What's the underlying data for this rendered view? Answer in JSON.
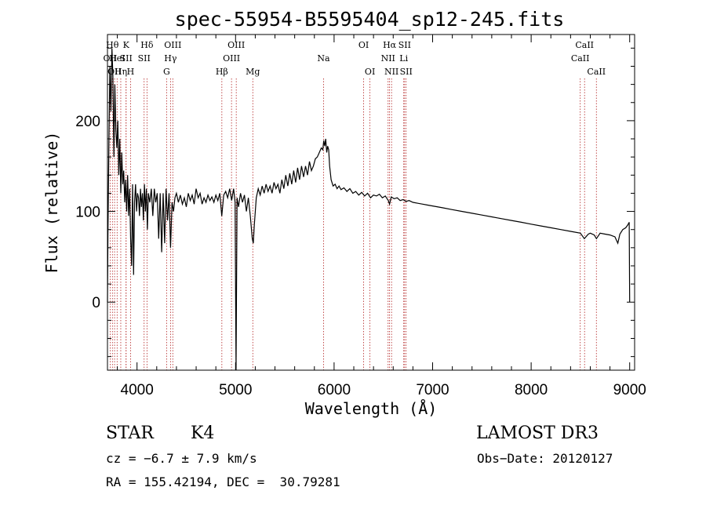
{
  "chart_data": {
    "type": "line",
    "title": "spec-55954-B5595404_sp12-245.fits",
    "xlabel": "Wavelength (Å)",
    "ylabel": "Flux (relative)",
    "xlim": [
      3700,
      9050
    ],
    "ylim": [
      -75,
      295
    ],
    "x_ticks": [
      4000,
      5000,
      6000,
      7000,
      8000,
      9000
    ],
    "y_ticks": [
      0,
      100,
      200
    ],
    "series": [
      {
        "name": "spectrum",
        "points": [
          [
            3700,
            0
          ],
          [
            3705,
            75
          ],
          [
            3715,
            180
          ],
          [
            3725,
            260
          ],
          [
            3735,
            210
          ],
          [
            3745,
            280
          ],
          [
            3755,
            250
          ],
          [
            3765,
            160
          ],
          [
            3775,
            240
          ],
          [
            3785,
            190
          ],
          [
            3795,
            170
          ],
          [
            3805,
            200
          ],
          [
            3815,
            140
          ],
          [
            3825,
            180
          ],
          [
            3835,
            120
          ],
          [
            3845,
            165
          ],
          [
            3855,
            130
          ],
          [
            3865,
            145
          ],
          [
            3875,
            110
          ],
          [
            3885,
            135
          ],
          [
            3895,
            100
          ],
          [
            3905,
            140
          ],
          [
            3915,
            95
          ],
          [
            3925,
            125
          ],
          [
            3935,
            70
          ],
          [
            3945,
            40
          ],
          [
            3955,
            130
          ],
          [
            3965,
            30
          ],
          [
            3975,
            110
          ],
          [
            3985,
            130
          ],
          [
            3995,
            100
          ],
          [
            4005,
            120
          ],
          [
            4015,
            115
          ],
          [
            4025,
            95
          ],
          [
            4035,
            125
          ],
          [
            4045,
            105
          ],
          [
            4055,
            120
          ],
          [
            4065,
            90
          ],
          [
            4075,
            130
          ],
          [
            4085,
            100
          ],
          [
            4095,
            125
          ],
          [
            4105,
            80
          ],
          [
            4115,
            120
          ],
          [
            4130,
            110
          ],
          [
            4145,
            125
          ],
          [
            4160,
            95
          ],
          [
            4175,
            125
          ],
          [
            4190,
            110
          ],
          [
            4205,
            120
          ],
          [
            4220,
            70
          ],
          [
            4235,
            120
          ],
          [
            4250,
            55
          ],
          [
            4265,
            120
          ],
          [
            4280,
            65
          ],
          [
            4295,
            125
          ],
          [
            4310,
            90
          ],
          [
            4325,
            120
          ],
          [
            4340,
            60
          ],
          [
            4355,
            110
          ],
          [
            4370,
            100
          ],
          [
            4385,
            115
          ],
          [
            4400,
            120
          ],
          [
            4420,
            110
          ],
          [
            4440,
            118
          ],
          [
            4460,
            108
          ],
          [
            4480,
            115
          ],
          [
            4500,
            105
          ],
          [
            4520,
            120
          ],
          [
            4540,
            112
          ],
          [
            4560,
            118
          ],
          [
            4580,
            108
          ],
          [
            4600,
            125
          ],
          [
            4620,
            115
          ],
          [
            4640,
            120
          ],
          [
            4660,
            108
          ],
          [
            4680,
            115
          ],
          [
            4700,
            110
          ],
          [
            4720,
            118
          ],
          [
            4740,
            112
          ],
          [
            4760,
            116
          ],
          [
            4780,
            110
          ],
          [
            4800,
            118
          ],
          [
            4820,
            112
          ],
          [
            4840,
            120
          ],
          [
            4860,
            95
          ],
          [
            4880,
            118
          ],
          [
            4900,
            122
          ],
          [
            4920,
            115
          ],
          [
            4940,
            125
          ],
          [
            4960,
            112
          ],
          [
            4980,
            125
          ],
          [
            4995,
            110
          ],
          [
            5005,
            -80
          ],
          [
            5015,
            115
          ],
          [
            5030,
            105
          ],
          [
            5050,
            120
          ],
          [
            5070,
            110
          ],
          [
            5090,
            118
          ],
          [
            5110,
            100
          ],
          [
            5130,
            115
          ],
          [
            5150,
            95
          ],
          [
            5170,
            70
          ],
          [
            5180,
            65
          ],
          [
            5190,
            85
          ],
          [
            5210,
            115
          ],
          [
            5230,
            125
          ],
          [
            5250,
            118
          ],
          [
            5270,
            128
          ],
          [
            5290,
            120
          ],
          [
            5310,
            130
          ],
          [
            5330,
            122
          ],
          [
            5350,
            128
          ],
          [
            5370,
            120
          ],
          [
            5390,
            132
          ],
          [
            5410,
            125
          ],
          [
            5430,
            130
          ],
          [
            5450,
            120
          ],
          [
            5470,
            135
          ],
          [
            5490,
            125
          ],
          [
            5510,
            140
          ],
          [
            5530,
            128
          ],
          [
            5550,
            142
          ],
          [
            5570,
            130
          ],
          [
            5590,
            145
          ],
          [
            5610,
            132
          ],
          [
            5630,
            148
          ],
          [
            5650,
            135
          ],
          [
            5670,
            150
          ],
          [
            5690,
            138
          ],
          [
            5710,
            150
          ],
          [
            5730,
            140
          ],
          [
            5750,
            155
          ],
          [
            5770,
            145
          ],
          [
            5790,
            150
          ],
          [
            5810,
            158
          ],
          [
            5830,
            160
          ],
          [
            5850,
            165
          ],
          [
            5870,
            170
          ],
          [
            5885,
            168
          ],
          [
            5895,
            178
          ],
          [
            5905,
            172
          ],
          [
            5915,
            180
          ],
          [
            5925,
            165
          ],
          [
            5935,
            172
          ],
          [
            5945,
            168
          ],
          [
            5955,
            150
          ],
          [
            5970,
            135
          ],
          [
            5990,
            128
          ],
          [
            6010,
            130
          ],
          [
            6030,
            125
          ],
          [
            6050,
            128
          ],
          [
            6070,
            124
          ],
          [
            6100,
            126
          ],
          [
            6130,
            122
          ],
          [
            6160,
            125
          ],
          [
            6190,
            120
          ],
          [
            6220,
            122
          ],
          [
            6250,
            118
          ],
          [
            6280,
            121
          ],
          [
            6310,
            117
          ],
          [
            6340,
            120
          ],
          [
            6370,
            115
          ],
          [
            6400,
            118
          ],
          [
            6430,
            117
          ],
          [
            6460,
            119
          ],
          [
            6490,
            115
          ],
          [
            6520,
            117
          ],
          [
            6550,
            112
          ],
          [
            6563,
            108
          ],
          [
            6580,
            116
          ],
          [
            6610,
            114
          ],
          [
            6640,
            115
          ],
          [
            6670,
            112
          ],
          [
            6700,
            113
          ],
          [
            6730,
            111
          ],
          [
            6760,
            112
          ],
          [
            6800,
            110
          ],
          [
            6850,
            109
          ],
          [
            6900,
            108
          ],
          [
            6950,
            107
          ],
          [
            7000,
            106
          ],
          [
            7100,
            104
          ],
          [
            7200,
            102
          ],
          [
            7300,
            100
          ],
          [
            7400,
            98
          ],
          [
            7500,
            96
          ],
          [
            7600,
            94
          ],
          [
            7700,
            92
          ],
          [
            7800,
            90
          ],
          [
            7900,
            88
          ],
          [
            8000,
            86
          ],
          [
            8100,
            84
          ],
          [
            8200,
            82
          ],
          [
            8300,
            80
          ],
          [
            8400,
            78
          ],
          [
            8500,
            76
          ],
          [
            8540,
            70
          ],
          [
            8580,
            75
          ],
          [
            8600,
            76
          ],
          [
            8640,
            74
          ],
          [
            8662,
            70
          ],
          [
            8700,
            76
          ],
          [
            8750,
            75
          ],
          [
            8800,
            74
          ],
          [
            8850,
            72
          ],
          [
            8880,
            65
          ],
          [
            8900,
            75
          ],
          [
            8930,
            80
          ],
          [
            8960,
            82
          ],
          [
            8980,
            85
          ],
          [
            8995,
            88
          ],
          [
            9000,
            0
          ]
        ]
      }
    ],
    "line_markers": [
      {
        "wavelength": 3727,
        "label": "OII",
        "row": 2
      },
      {
        "wavelength": 3750,
        "label": "Hθ",
        "row": 1
      },
      {
        "wavelength": 3772,
        "label": "OII",
        "row": 3
      },
      {
        "wavelength": 3798,
        "label": "HeI",
        "row": 2
      },
      {
        "wavelength": 3835,
        "label": "Hη",
        "row": 3
      },
      {
        "wavelength": 3889,
        "label": "K",
        "row": 1
      },
      {
        "wavelength": 3889,
        "label": "SII",
        "row": 2
      },
      {
        "wavelength": 3934,
        "label": "H",
        "row": 3
      },
      {
        "wavelength": 4101,
        "label": "Hδ",
        "row": 1
      },
      {
        "wavelength": 4072,
        "label": "SII",
        "row": 2
      },
      {
        "wavelength": 4300,
        "label": "G",
        "row": 3
      },
      {
        "wavelength": 4340,
        "label": "Hγ",
        "row": 2
      },
      {
        "wavelength": 4363,
        "label": "OIII",
        "row": 1
      },
      {
        "wavelength": 4861,
        "label": "Hβ",
        "row": 3
      },
      {
        "wavelength": 4959,
        "label": "OIII",
        "row": 2
      },
      {
        "wavelength": 5007,
        "label": "OIII",
        "row": 1
      },
      {
        "wavelength": 5175,
        "label": "Mg",
        "row": 3
      },
      {
        "wavelength": 5893,
        "label": "Na",
        "row": 2
      },
      {
        "wavelength": 6300,
        "label": "OI",
        "row": 1
      },
      {
        "wavelength": 6364,
        "label": "OI",
        "row": 3
      },
      {
        "wavelength": 6548,
        "label": "NII",
        "row": 2
      },
      {
        "wavelength": 6563,
        "label": "Hα",
        "row": 1
      },
      {
        "wavelength": 6583,
        "label": "NII",
        "row": 3
      },
      {
        "wavelength": 6707,
        "label": "Li",
        "row": 2
      },
      {
        "wavelength": 6716,
        "label": "SII",
        "row": 1
      },
      {
        "wavelength": 6731,
        "label": "SII",
        "row": 3
      },
      {
        "wavelength": 8498,
        "label": "CaII",
        "row": 2
      },
      {
        "wavelength": 8542,
        "label": "CaII",
        "row": 1
      },
      {
        "wavelength": 8662,
        "label": "CaII",
        "row": 3
      }
    ]
  },
  "info": {
    "class": "STAR",
    "subclass": "K4",
    "survey": "LAMOST DR3",
    "cz": "cz = −6.7 ± 7.9 km/s",
    "obs_date": "Obs−Date: 20120127",
    "coords": "RA = 155.42194, DEC =  30.79281"
  }
}
